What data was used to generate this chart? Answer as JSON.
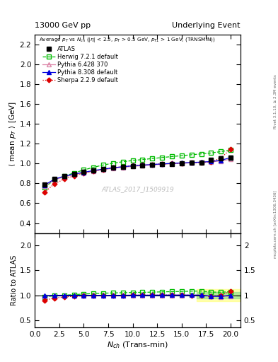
{
  "title_left": "13000 GeV pp",
  "title_right": "Underlying Event",
  "inner_label": "Average $p_T$ vs $N_{ch}$ ($|\\eta|$ < 2.5, $p_T$ > 0.5 GeV, $p_{T1}$ > 1 GeV, (TRNSMIN))",
  "ylabel_main": "$\\langle$ mean $p_T$ $\\rangle$ [GeV]",
  "ylabel_ratio": "Ratio to ATLAS",
  "xlabel": "$N_{ch}$ (Trans-min)",
  "watermark": "ATLAS_2017_I1509919",
  "right_label_top": "Rivet 3.1.10, ≥ 2.3M events",
  "right_label_bot": "mcplots.cern.ch [arXiv:1306.3436]",
  "ylim_main": [
    0.3,
    2.3
  ],
  "ylim_ratio": [
    0.35,
    2.25
  ],
  "yticks_main": [
    0.4,
    0.6,
    0.8,
    1.0,
    1.2,
    1.4,
    1.6,
    1.8,
    2.0,
    2.2
  ],
  "yticks_ratio": [
    0.5,
    1.0,
    1.5,
    2.0
  ],
  "xlim": [
    0,
    21
  ],
  "atlas_x": [
    1,
    2,
    3,
    4,
    5,
    6,
    7,
    8,
    9,
    10,
    11,
    12,
    13,
    14,
    15,
    16,
    17,
    18,
    19,
    20
  ],
  "atlas_y": [
    0.788,
    0.842,
    0.872,
    0.893,
    0.913,
    0.93,
    0.946,
    0.958,
    0.968,
    0.975,
    0.982,
    0.988,
    0.992,
    0.997,
    1.002,
    1.006,
    1.011,
    1.04,
    1.055,
    1.06
  ],
  "atlas_yerr": [
    0.012,
    0.009,
    0.007,
    0.006,
    0.006,
    0.005,
    0.005,
    0.005,
    0.005,
    0.005,
    0.005,
    0.005,
    0.005,
    0.005,
    0.005,
    0.006,
    0.007,
    0.012,
    0.016,
    0.022
  ],
  "herwig_x": [
    1,
    2,
    3,
    4,
    5,
    6,
    7,
    8,
    9,
    10,
    11,
    12,
    13,
    14,
    15,
    16,
    17,
    18,
    19,
    20
  ],
  "herwig_y": [
    0.76,
    0.835,
    0.873,
    0.905,
    0.935,
    0.962,
    0.985,
    1.003,
    1.018,
    1.03,
    1.04,
    1.05,
    1.06,
    1.07,
    1.079,
    1.088,
    1.097,
    1.106,
    1.12,
    1.135
  ],
  "pythia6_x": [
    1,
    2,
    3,
    4,
    5,
    6,
    7,
    8,
    9,
    10,
    11,
    12,
    13,
    14,
    15,
    16,
    17,
    18,
    19,
    20
  ],
  "pythia6_y": [
    0.775,
    0.835,
    0.865,
    0.888,
    0.907,
    0.924,
    0.939,
    0.952,
    0.962,
    0.971,
    0.979,
    0.986,
    0.992,
    0.998,
    1.003,
    1.008,
    1.013,
    1.018,
    1.025,
    1.045
  ],
  "pythia8_x": [
    1,
    2,
    3,
    4,
    5,
    6,
    7,
    8,
    9,
    10,
    11,
    12,
    13,
    14,
    15,
    16,
    17,
    18,
    19,
    20
  ],
  "pythia8_y": [
    0.782,
    0.842,
    0.872,
    0.893,
    0.912,
    0.929,
    0.944,
    0.957,
    0.968,
    0.977,
    0.984,
    0.99,
    0.996,
    1.001,
    1.006,
    1.01,
    1.014,
    1.02,
    1.032,
    1.06
  ],
  "sherpa_x": [
    1,
    2,
    3,
    4,
    5,
    6,
    7,
    8,
    9,
    10,
    11,
    12,
    13,
    14,
    15,
    16,
    17,
    18,
    19,
    20
  ],
  "sherpa_y": [
    0.71,
    0.795,
    0.842,
    0.876,
    0.902,
    0.923,
    0.941,
    0.957,
    0.968,
    0.977,
    0.984,
    0.99,
    0.996,
    1.001,
    1.004,
    1.007,
    1.01,
    1.017,
    1.055,
    1.145
  ],
  "atlas_color": "#000000",
  "herwig_color": "#00bb00",
  "pythia6_color": "#dd88aa",
  "pythia8_color": "#0000dd",
  "sherpa_color": "#dd0000",
  "band_yellow": "#ffff88",
  "band_green": "#88dd88"
}
